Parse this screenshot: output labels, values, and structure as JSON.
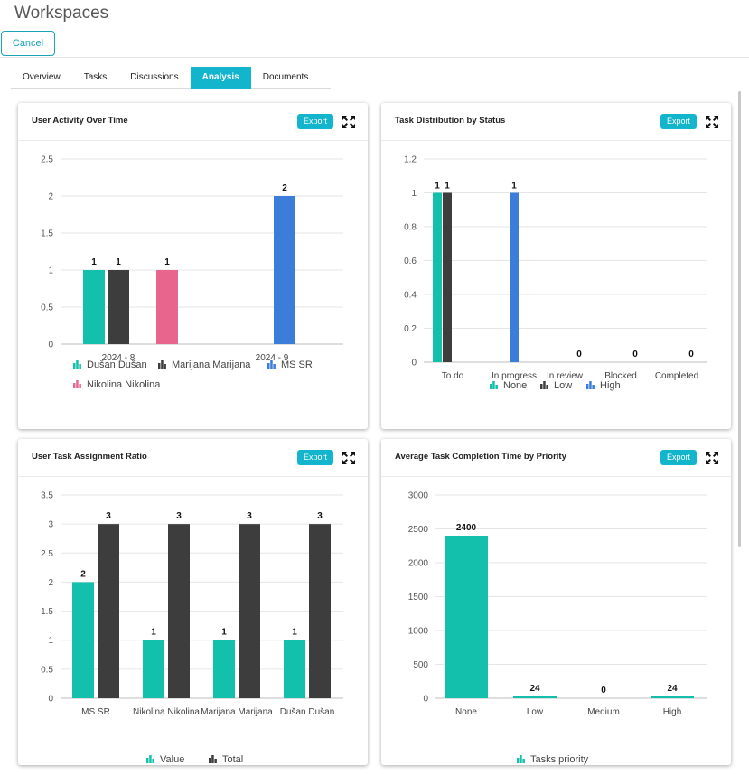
{
  "page": {
    "title": "Workspaces",
    "cancel_label": "Cancel"
  },
  "tabs": [
    {
      "label": "Overview",
      "active": false
    },
    {
      "label": "Tasks",
      "active": false
    },
    {
      "label": "Discussions",
      "active": false
    },
    {
      "label": "Analysis",
      "active": true
    },
    {
      "label": "Documents",
      "active": false
    }
  ],
  "colors": {
    "teal": "#13c0ab",
    "dark": "#3d3d3d",
    "pink": "#e8658e",
    "blue": "#3b7dd8",
    "accent": "#12b5cb"
  },
  "cards": [
    {
      "title": "User Activity Over Time",
      "export_label": "Export",
      "chart_data": {
        "type": "bar",
        "title": "User Activity Over Time",
        "categories": [
          "2024 - 8",
          "2024 - 9"
        ],
        "ylim": [
          0,
          2.5
        ],
        "yticks": [
          "0",
          "0.5",
          "1",
          "1.5",
          "2",
          "2.5"
        ],
        "series": [
          {
            "name": "Dušan Dušan",
            "color": "#13c0ab",
            "values": [
              1,
              null
            ]
          },
          {
            "name": "Marijana Marijana",
            "color": "#3d3d3d",
            "values": [
              1,
              null
            ]
          },
          {
            "name": "MS SR",
            "color": "#3b7dd8",
            "values": [
              null,
              2
            ]
          },
          {
            "name": "Nikolina Nikolina",
            "color": "#e8658e",
            "values": [
              1,
              null
            ]
          }
        ],
        "legend": [
          "Dušan Dušan",
          "Marijana Marijana",
          "MS SR",
          "Nikolina Nikolina"
        ]
      }
    },
    {
      "title": "Task Distribution by Status",
      "export_label": "Export",
      "chart_data": {
        "type": "bar",
        "title": "Task Distribution by Status",
        "categories": [
          "To do",
          "In progress",
          "In review",
          "Blocked",
          "Completed"
        ],
        "ylim": [
          0,
          1.2
        ],
        "yticks": [
          "0",
          "0.2",
          "0.4",
          "0.6",
          "0.8",
          "1",
          "1.2"
        ],
        "series": [
          {
            "name": "None",
            "color": "#13c0ab",
            "values": [
              1,
              null,
              null,
              null,
              null
            ]
          },
          {
            "name": "Low",
            "color": "#3d3d3d",
            "values": [
              1,
              null,
              null,
              null,
              null
            ]
          },
          {
            "name": "High",
            "color": "#3b7dd8",
            "values": [
              null,
              1,
              null,
              null,
              null
            ]
          }
        ],
        "zero_labels": [
          "0",
          "0",
          "0"
        ],
        "legend": [
          "None",
          "Low",
          "High"
        ]
      }
    },
    {
      "title": "User Task Assignment Ratio",
      "export_label": "Export",
      "chart_data": {
        "type": "bar",
        "title": "User Task Assignment Ratio",
        "categories": [
          "MS SR",
          "Nikolina Nikolina",
          "Marijana Marijana",
          "Dušan Dušan"
        ],
        "ylim": [
          0,
          3.5
        ],
        "yticks": [
          "0",
          "0.5",
          "1",
          "1.5",
          "2",
          "2.5",
          "3",
          "3.5"
        ],
        "series": [
          {
            "name": "Value",
            "color": "#13c0ab",
            "values": [
              2,
              1,
              1,
              1
            ]
          },
          {
            "name": "Total",
            "color": "#3d3d3d",
            "values": [
              3,
              3,
              3,
              3
            ]
          }
        ],
        "legend": [
          "Value",
          "Total"
        ]
      }
    },
    {
      "title": "Average Task Completion Time by Priority",
      "export_label": "Export",
      "chart_data": {
        "type": "bar",
        "title": "Average Task Completion Time by Priority",
        "categories": [
          "None",
          "Low",
          "Medium",
          "High"
        ],
        "ylim": [
          0,
          3000
        ],
        "yticks": [
          "0",
          "500",
          "1000",
          "1500",
          "2000",
          "2500",
          "3000"
        ],
        "series": [
          {
            "name": "Tasks priority",
            "color": "#13c0ab",
            "values": [
              2400,
              24,
              0,
              24
            ]
          }
        ],
        "legend": [
          "Tasks priority"
        ]
      }
    }
  ]
}
